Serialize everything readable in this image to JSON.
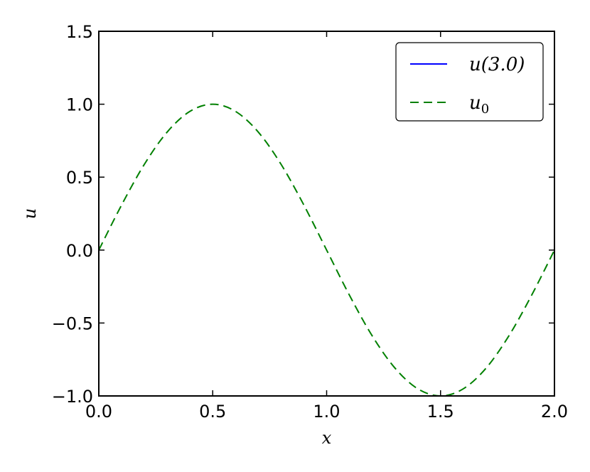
{
  "chart_data": {
    "type": "line",
    "title": "",
    "xlabel": "x",
    "ylabel": "u",
    "xlim": [
      0.0,
      2.0
    ],
    "ylim": [
      -1.0,
      1.5
    ],
    "x_ticks": [
      0.0,
      0.5,
      1.0,
      1.5,
      2.0
    ],
    "x_tick_labels": [
      "0.0",
      "0.5",
      "1.0",
      "1.5",
      "2.0"
    ],
    "y_ticks": [
      -1.0,
      -0.5,
      0.0,
      0.5,
      1.0,
      1.5
    ],
    "y_tick_labels": [
      "−1.0",
      "−0.5",
      "0.0",
      "0.5",
      "1.0",
      "1.5"
    ],
    "grid": false,
    "legend_position": "top-right",
    "series": [
      {
        "name": "u(3.0)",
        "color": "#0000ff",
        "style": "solid",
        "x": [],
        "y": []
      },
      {
        "name": "u0",
        "color": "#008000",
        "style": "dashed",
        "x": [
          0.0,
          0.1,
          0.2,
          0.3,
          0.4,
          0.5,
          0.6,
          0.7,
          0.8,
          0.9,
          1.0,
          1.1,
          1.2,
          1.3,
          1.4,
          1.5,
          1.6,
          1.7,
          1.8,
          1.9,
          2.0
        ],
        "y": [
          0.0,
          0.309,
          0.588,
          0.809,
          0.951,
          1.0,
          0.951,
          0.809,
          0.588,
          0.309,
          0.0,
          -0.309,
          -0.588,
          -0.809,
          -0.951,
          -1.0,
          -0.951,
          -0.809,
          -0.588,
          -0.309,
          0.0
        ]
      }
    ]
  }
}
